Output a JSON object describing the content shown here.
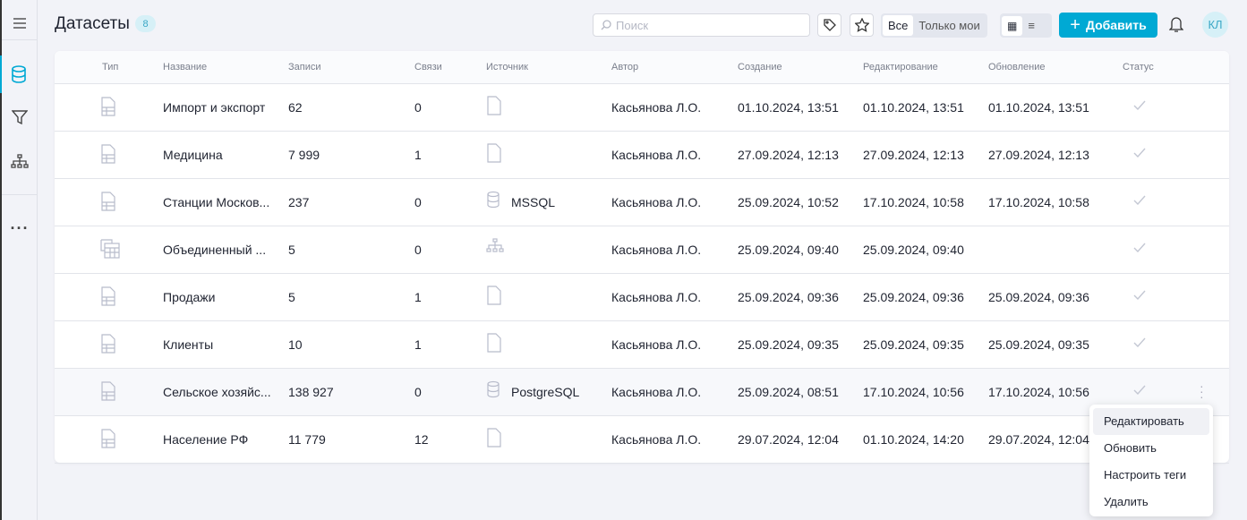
{
  "header": {
    "title": "Датасеты",
    "count": "8",
    "search_placeholder": "Поиск",
    "filter_all": "Все",
    "filter_mine": "Только мои",
    "add_label": "Добавить",
    "avatar": "КЛ"
  },
  "columns": [
    "Тип",
    "Название",
    "Записи",
    "Связи",
    "Источник",
    "Автор",
    "Создание",
    "Редактирование",
    "Обновление",
    "Статус"
  ],
  "rows": [
    {
      "type": "file-table",
      "name": "Импорт и экспорт",
      "records": "62",
      "links": "0",
      "source_icon": "file",
      "source": "",
      "author": "Касьянова Л.О.",
      "created": "01.10.2024, 13:51",
      "edited": "01.10.2024, 13:51",
      "updated": "01.10.2024, 13:51"
    },
    {
      "type": "file-table",
      "name": "Медицина",
      "records": "7 999",
      "links": "1",
      "source_icon": "file",
      "source": "",
      "author": "Касьянова Л.О.",
      "created": "27.09.2024, 12:13",
      "edited": "27.09.2024, 12:13",
      "updated": "27.09.2024, 12:13"
    },
    {
      "type": "file-table",
      "name": "Станции Москов...",
      "records": "237",
      "links": "0",
      "source_icon": "database",
      "source": "MSSQL",
      "author": "Касьянова Л.О.",
      "created": "25.09.2024, 10:52",
      "edited": "17.10.2024, 10:58",
      "updated": "17.10.2024, 10:58"
    },
    {
      "type": "merged-table",
      "name": "Объединенный ...",
      "records": "5",
      "links": "0",
      "source_icon": "hierarchy",
      "source": "",
      "author": "Касьянова Л.О.",
      "created": "25.09.2024, 09:40",
      "edited": "25.09.2024, 09:40",
      "updated": ""
    },
    {
      "type": "file-table",
      "name": "Продажи",
      "records": "5",
      "links": "1",
      "source_icon": "file",
      "source": "",
      "author": "Касьянова Л.О.",
      "created": "25.09.2024, 09:36",
      "edited": "25.09.2024, 09:36",
      "updated": "25.09.2024, 09:36"
    },
    {
      "type": "file-table",
      "name": "Клиенты",
      "records": "10",
      "links": "1",
      "source_icon": "file",
      "source": "",
      "author": "Касьянова Л.О.",
      "created": "25.09.2024, 09:35",
      "edited": "25.09.2024, 09:35",
      "updated": "25.09.2024, 09:35"
    },
    {
      "type": "file-table",
      "name": "Сельское хозяйс...",
      "records": "138 927",
      "links": "0",
      "source_icon": "database",
      "source": "PostgreSQL",
      "author": "Касьянова Л.О.",
      "created": "25.09.2024, 08:51",
      "edited": "17.10.2024, 10:56",
      "updated": "17.10.2024, 10:56"
    },
    {
      "type": "file-table",
      "name": "Население РФ",
      "records": "11 779",
      "links": "12",
      "source_icon": "file",
      "source": "",
      "author": "Касьянова Л.О.",
      "created": "29.07.2024, 12:04",
      "edited": "01.10.2024, 14:20",
      "updated": "29.07.2024, 12:04"
    }
  ],
  "context_menu": [
    "Редактировать",
    "Обновить",
    "Настроить теги",
    "Удалить"
  ],
  "colors": {
    "accent": "#00a9d4"
  }
}
